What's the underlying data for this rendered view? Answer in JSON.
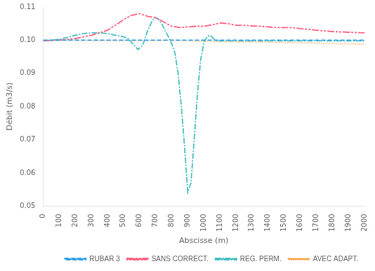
{
  "chart_data": {
    "type": "line",
    "xlabel": "Abscisse (m)",
    "ylabel": "Débit (m3/s)",
    "xlim": [
      0,
      2000
    ],
    "ylim": [
      0.05,
      0.11
    ],
    "xticks": [
      0,
      100,
      200,
      300,
      400,
      500,
      600,
      700,
      800,
      900,
      1000,
      1100,
      1200,
      1300,
      1400,
      1500,
      1600,
      1700,
      1800,
      1900,
      2000
    ],
    "yticks": [
      0.05,
      0.06,
      0.07,
      0.08,
      0.09,
      {
        "value": 0.1,
        "label": "0.10"
      },
      0.11
    ],
    "grid": false,
    "legend": "lower right",
    "series": [
      {
        "name": "RUBAR 3",
        "line_style": "dashed",
        "x": [
          0,
          100,
          200,
          300,
          400,
          500,
          600,
          700,
          800,
          900,
          1000,
          1100,
          1200,
          1300,
          1400,
          1500,
          1600,
          1700,
          1800,
          1900,
          2000
        ],
        "values": [
          0.1,
          0.1,
          0.1,
          0.1,
          0.1,
          0.1,
          0.1,
          0.1,
          0.1,
          0.1,
          0.1,
          0.1,
          0.1,
          0.1,
          0.1,
          0.1,
          0.1,
          0.1,
          0.1,
          0.1,
          0.1
        ]
      },
      {
        "name": "SANS CORRECT.",
        "line_style": "dashdotdot",
        "x": [
          0,
          50,
          100,
          150,
          200,
          250,
          300,
          350,
          400,
          450,
          500,
          550,
          600,
          650,
          700,
          750,
          800,
          850,
          900,
          950,
          1000,
          1050,
          1100,
          1150,
          1200,
          1250,
          1300,
          1350,
          1400,
          1450,
          1500,
          1550,
          1600,
          1650,
          1700,
          1750,
          1800,
          1850,
          1900,
          1950,
          2000
        ],
        "values": [
          0.0998,
          0.0999,
          0.1,
          0.1002,
          0.1005,
          0.101,
          0.1015,
          0.1022,
          0.103,
          0.1045,
          0.1062,
          0.1075,
          0.108,
          0.1072,
          0.1068,
          0.1055,
          0.1042,
          0.1038,
          0.104,
          0.1042,
          0.1042,
          0.1046,
          0.1052,
          0.105,
          0.1045,
          0.1045,
          0.1043,
          0.1042,
          0.104,
          0.1038,
          0.1038,
          0.1038,
          0.1035,
          0.1033,
          0.103,
          0.1028,
          0.1026,
          0.1025,
          0.1024,
          0.1023,
          0.1022
        ]
      },
      {
        "name": "REG. PERM.",
        "line_style": "dashdot",
        "x": [
          0,
          50,
          100,
          150,
          200,
          250,
          300,
          350,
          400,
          450,
          500,
          530,
          560,
          590,
          620,
          650,
          680,
          700,
          720,
          740,
          760,
          780,
          800,
          820,
          840,
          860,
          880,
          900,
          920,
          940,
          960,
          980,
          1000,
          1020,
          1040,
          1060,
          1080,
          1100,
          1150,
          1200,
          1300,
          1400,
          1500,
          1600,
          1700,
          1800,
          1900,
          2000
        ],
        "values": [
          0.0999,
          0.1,
          0.1003,
          0.1008,
          0.1015,
          0.102,
          0.1022,
          0.1022,
          0.102,
          0.1015,
          0.101,
          0.1005,
          0.0988,
          0.0972,
          0.0985,
          0.1028,
          0.106,
          0.1068,
          0.1062,
          0.1048,
          0.1028,
          0.101,
          0.099,
          0.0962,
          0.09,
          0.08,
          0.068,
          0.0542,
          0.057,
          0.07,
          0.0835,
          0.094,
          0.0992,
          0.101,
          0.1015,
          0.1005,
          0.0998,
          0.0998,
          0.0998,
          0.0998,
          0.0998,
          0.0998,
          0.0998,
          0.0998,
          0.0998,
          0.0998,
          0.0998,
          0.0998
        ]
      },
      {
        "name": "AVEC ADAPT.",
        "line_style": "dotted",
        "x": [
          0,
          100,
          200,
          300,
          400,
          500,
          600,
          700,
          800,
          900,
          1000,
          1100,
          1200,
          1300,
          1400,
          1500,
          1600,
          1700,
          1800,
          1900,
          2000
        ],
        "values": [
          0.1,
          0.1,
          0.1,
          0.0999,
          0.0999,
          0.0999,
          0.0999,
          0.0999,
          0.1,
          0.0998,
          0.0997,
          0.0996,
          0.0995,
          0.0995,
          0.0994,
          0.0993,
          0.0992,
          0.0991,
          0.099,
          0.0989,
          0.0988
        ]
      }
    ]
  }
}
